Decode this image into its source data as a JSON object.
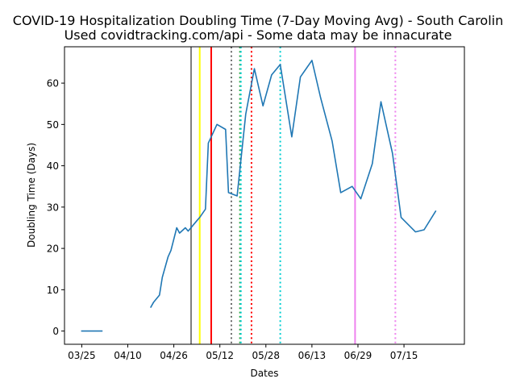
{
  "chart_data": {
    "type": "line",
    "title": "COVID-19 Hospitalization Doubling Time (7-Day Moving Avg) - South Carolin",
    "subtitle": "Used covidtracking.com/api - Some data may be innacurate",
    "xlabel": "Dates",
    "ylabel": "Doubling Time (Days)",
    "x_ticks": [
      "03/25",
      "04/10",
      "04/26",
      "05/12",
      "05/28",
      "06/13",
      "06/29",
      "07/15"
    ],
    "x_tick_days": [
      0,
      16,
      32,
      48,
      64,
      80,
      96,
      112
    ],
    "xlim_days": [
      -6,
      133
    ],
    "y_ticks": [
      0,
      10,
      20,
      30,
      40,
      50,
      60
    ],
    "ylim": [
      -3.2,
      68.8
    ],
    "grid": false,
    "series": [
      {
        "name": "",
        "color": "#1f77b4",
        "segments": [
          [
            [
              0,
              0
            ],
            [
              7,
              0
            ]
          ],
          [
            [
              24,
              5.8
            ],
            [
              25,
              7
            ],
            [
              27,
              8.7
            ],
            [
              28,
              13
            ],
            [
              30,
              18
            ],
            [
              31,
              19.5
            ],
            [
              33,
              25
            ],
            [
              34,
              23.7
            ],
            [
              36,
              25
            ],
            [
              37,
              24.2
            ],
            [
              40,
              26.7
            ],
            [
              41,
              27.5
            ],
            [
              43,
              29.5
            ],
            [
              44,
              45.5
            ],
            [
              47,
              50
            ],
            [
              50,
              48.8
            ],
            [
              51,
              33.5
            ],
            [
              54,
              32.7
            ],
            [
              57,
              52.5
            ],
            [
              60,
              63.5
            ],
            [
              63,
              54.5
            ],
            [
              66,
              62
            ],
            [
              69,
              64.5
            ],
            [
              73,
              47
            ],
            [
              76,
              61.5
            ],
            [
              80,
              65.5
            ],
            [
              83,
              56.5
            ],
            [
              87,
              46
            ],
            [
              90,
              33.5
            ],
            [
              94,
              35
            ],
            [
              97,
              32
            ],
            [
              101,
              40.5
            ],
            [
              104,
              55.5
            ],
            [
              108,
              43
            ],
            [
              111,
              27.5
            ],
            [
              116,
              24
            ],
            [
              119,
              24.5
            ],
            [
              123,
              29
            ]
          ]
        ]
      }
    ],
    "vlines": [
      {
        "day": 38,
        "color": "#808080",
        "style": "solid"
      },
      {
        "day": 41,
        "color": "#ffff00",
        "style": "solid"
      },
      {
        "day": 45,
        "color": "#ff0000",
        "style": "solid"
      },
      {
        "day": 52,
        "color": "#696969",
        "style": "dotted"
      },
      {
        "day": 55,
        "color": "#2ca02c",
        "style": "dotted"
      },
      {
        "day": 55.3,
        "color": "#00ced1",
        "style": "dotted"
      },
      {
        "day": 59,
        "color": "#ff0000",
        "style": "dotted"
      },
      {
        "day": 69,
        "color": "#00ced1",
        "style": "dotted"
      },
      {
        "day": 95,
        "color": "#ee82ee",
        "style": "solid"
      },
      {
        "day": 109,
        "color": "#ee82ee",
        "style": "dotted"
      }
    ]
  }
}
